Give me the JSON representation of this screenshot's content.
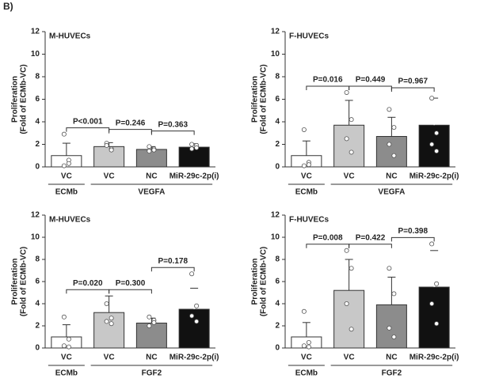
{
  "figure_label": "B)",
  "chart_data": [
    {
      "type": "bar",
      "title": "M-HUVECs",
      "ylabel": [
        "Proliferation",
        "(Fold of ECMb-VC)"
      ],
      "categories": [
        "VC",
        "VC",
        "NC",
        "MiR-29c-2p(i)"
      ],
      "groups": [
        "ECMb",
        "VEGFA"
      ],
      "values": [
        1.0,
        1.8,
        1.55,
        1.75
      ],
      "errors": [
        1.1,
        0.35,
        0.25,
        0.3
      ],
      "points": [
        [
          2.9,
          0.6,
          0.1,
          0.3
        ],
        [
          2.1,
          1.6,
          1.9,
          1.5
        ],
        [
          1.4,
          1.6,
          1.8,
          1.5
        ],
        [
          1.6,
          1.9,
          2.0,
          1.7
        ]
      ],
      "colors": [
        "#ffffff",
        "#c8c8c8",
        "#8c8c8c",
        "#111111"
      ],
      "annotations": [
        "P<0.001",
        "P=0.246",
        "P=0.363"
      ],
      "ylim": [
        0,
        12
      ],
      "yticks": [
        0,
        2,
        4,
        6,
        8,
        10,
        12
      ]
    },
    {
      "type": "bar",
      "title": "F-HUVECs",
      "ylabel": [
        "Proliferation",
        "(Fold of ECMb-VC)"
      ],
      "categories": [
        "VC",
        "VC",
        "NC",
        "MiR-29c-2p(i)"
      ],
      "groups": [
        "ECMb",
        "VEGFA"
      ],
      "values": [
        1.0,
        3.7,
        2.7,
        3.7
      ],
      "errors": [
        1.3,
        2.2,
        1.7,
        2.4
      ],
      "points": [
        [
          3.3,
          0.4,
          0.1,
          0.2
        ],
        [
          6.6,
          4.2,
          2.5,
          1.3
        ],
        [
          5.1,
          3.5,
          2.0,
          1.0
        ],
        [
          6.1,
          3.0,
          2.0,
          1.4
        ]
      ],
      "colors": [
        "#ffffff",
        "#c8c8c8",
        "#8c8c8c",
        "#111111"
      ],
      "annotations": [
        "P=0.016",
        "P=0.449",
        "P=0.967"
      ],
      "ylim": [
        0,
        12
      ],
      "yticks": [
        0,
        2,
        4,
        6,
        8,
        10,
        12
      ]
    },
    {
      "type": "bar",
      "title": "M-HUVECs",
      "ylabel": [
        "Proliferation",
        "(Fold of ECMb-VC)"
      ],
      "categories": [
        "VC",
        "VC",
        "NC",
        "MiR-29c-2p(i)"
      ],
      "groups": [
        "ECMb",
        "FGF2"
      ],
      "values": [
        1.0,
        3.2,
        2.25,
        3.5
      ],
      "errors": [
        1.1,
        1.5,
        0.45,
        1.9
      ],
      "points": [
        [
          2.8,
          0.8,
          0.2,
          0.1
        ],
        [
          4.0,
          2.7,
          2.4,
          2.2
        ],
        [
          2.8,
          2.5,
          2.0,
          2.3
        ],
        [
          6.7,
          3.8,
          2.9,
          2.4
        ]
      ],
      "colors": [
        "#ffffff",
        "#c8c8c8",
        "#8c8c8c",
        "#111111"
      ],
      "annotations": [
        "P=0.020",
        "P=0.300",
        "P=0.178"
      ],
      "ylim": [
        0,
        12
      ],
      "yticks": [
        0,
        2,
        4,
        6,
        8,
        10,
        12
      ]
    },
    {
      "type": "bar",
      "title": "F-HUVECs",
      "ylabel": [
        "Proliferation",
        "(Fold of ECMb-VC)"
      ],
      "categories": [
        "VC",
        "VC",
        "NC",
        "MiR-29c-2p(i)"
      ],
      "groups": [
        "ECMb",
        "FGF2"
      ],
      "values": [
        1.0,
        5.2,
        3.9,
        5.5
      ],
      "errors": [
        1.3,
        2.8,
        2.5,
        3.3
      ],
      "points": [
        [
          3.3,
          0.5,
          0.2,
          0.1
        ],
        [
          8.8,
          7.2,
          4.0,
          1.7
        ],
        [
          7.2,
          4.9,
          1.8,
          1.0
        ],
        [
          9.4,
          5.8,
          4.0,
          2.2
        ]
      ],
      "colors": [
        "#ffffff",
        "#c8c8c8",
        "#8c8c8c",
        "#111111"
      ],
      "annotations": [
        "P=0.008",
        "P=0.422",
        "P=0.398"
      ],
      "ylim": [
        0,
        12
      ],
      "yticks": [
        0,
        2,
        4,
        6,
        8,
        10,
        12
      ]
    }
  ]
}
